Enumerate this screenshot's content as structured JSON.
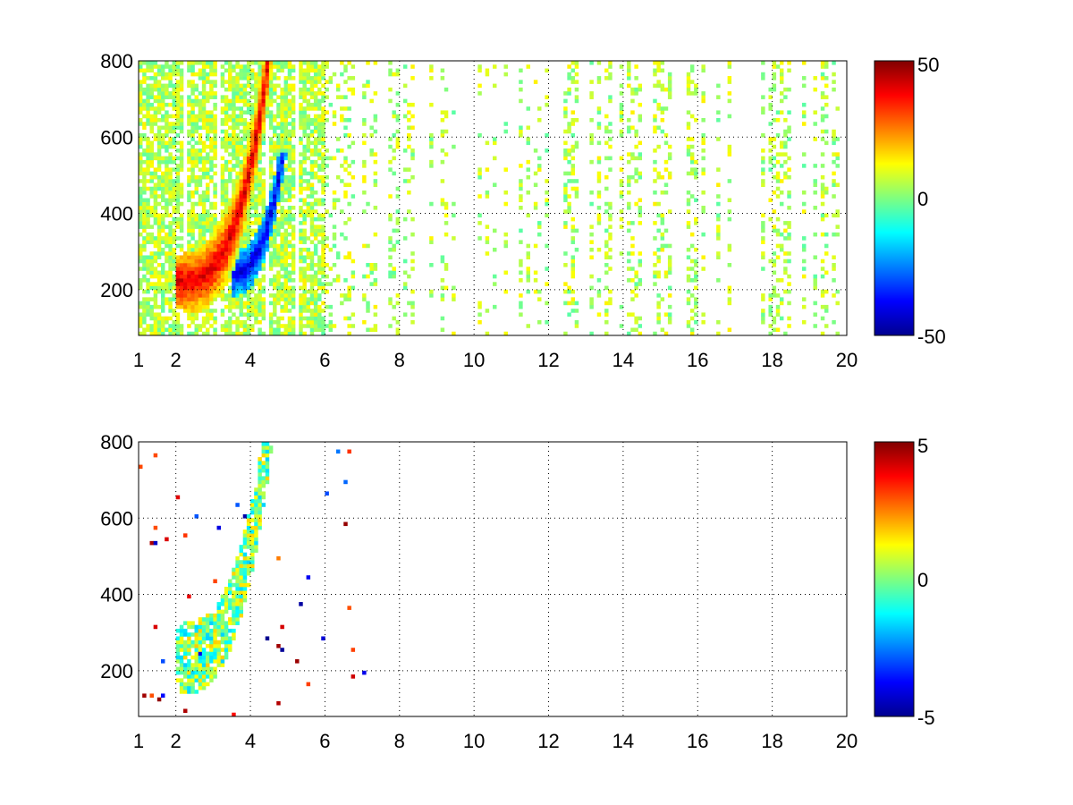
{
  "chart_data": [
    {
      "type": "heatmap",
      "title": "",
      "xlabel": "",
      "ylabel": "",
      "xlim": [
        1,
        20
      ],
      "ylim": [
        80,
        800
      ],
      "x_ticks": [
        "1",
        "2",
        "4",
        "6",
        "8",
        "10",
        "12",
        "14",
        "16",
        "18",
        "20"
      ],
      "y_ticks": [
        "200",
        "400",
        "600",
        "800"
      ],
      "grid": true,
      "colormap": "jet",
      "colorbar": {
        "min": -50,
        "max": 50,
        "ticks": [
          "50",
          "0",
          "-50"
        ]
      },
      "features": [
        {
          "name": "positive ridge",
          "x_range": [
            2,
            4.6
          ],
          "y_range": [
            220,
            800
          ],
          "value": 45
        },
        {
          "name": "negative ridge",
          "x_range": [
            3.6,
            5.3
          ],
          "y_range": [
            240,
            520
          ],
          "value": -45
        },
        {
          "name": "broadband streaks",
          "x_range": [
            1,
            20
          ],
          "y_range": [
            80,
            800
          ],
          "value_range": [
            -10,
            15
          ]
        }
      ]
    },
    {
      "type": "heatmap",
      "title": "",
      "xlabel": "",
      "ylabel": "",
      "xlim": [
        1,
        20
      ],
      "ylim": [
        80,
        800
      ],
      "x_ticks": [
        "1",
        "2",
        "4",
        "6",
        "8",
        "10",
        "12",
        "14",
        "16",
        "18",
        "20"
      ],
      "y_ticks": [
        "200",
        "400",
        "600",
        "800"
      ],
      "grid": true,
      "colormap": "jet",
      "colorbar": {
        "min": -5,
        "max": 5,
        "ticks": [
          "5",
          "0",
          "-5"
        ]
      },
      "features": [
        {
          "name": "curved band",
          "x_range": [
            2,
            5.6
          ],
          "y_range": [
            200,
            800
          ],
          "value_range": [
            -2,
            2
          ]
        },
        {
          "name": "scattered outliers",
          "x_range": [
            1,
            7
          ],
          "y_range": [
            80,
            780
          ],
          "value_range": [
            -5,
            5
          ]
        }
      ]
    }
  ]
}
